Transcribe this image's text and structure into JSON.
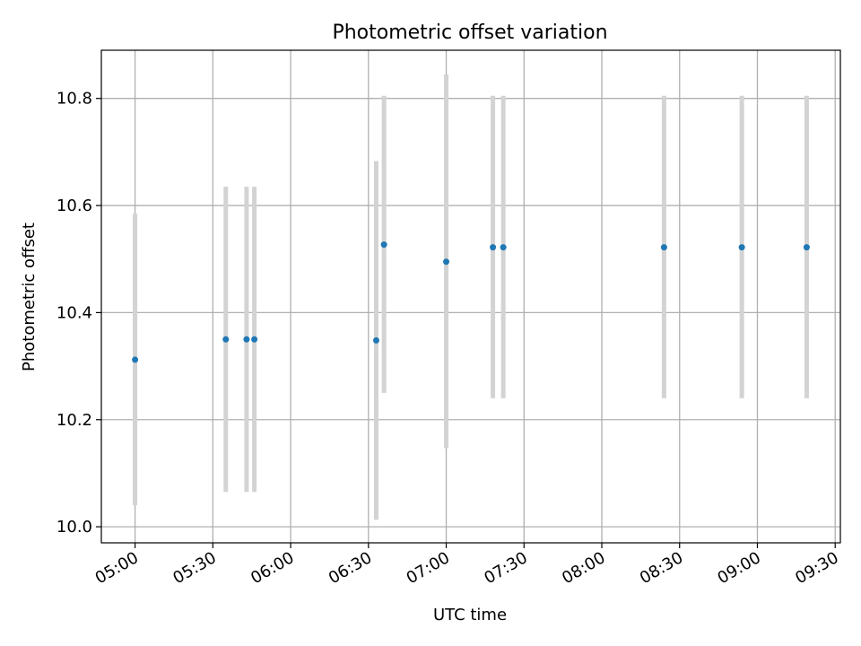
{
  "chart_data": {
    "type": "scatter",
    "title": "Photometric offset variation",
    "xlabel": "UTC time",
    "ylabel": "Photometric offset",
    "x_ticks": [
      "05:00",
      "05:30",
      "06:00",
      "06:30",
      "07:00",
      "07:30",
      "08:00",
      "08:30",
      "09:00",
      "09:30"
    ],
    "y_ticks": [
      "10.0",
      "10.2",
      "10.4",
      "10.6",
      "10.8"
    ],
    "xlim": [
      "04:47",
      "09:32"
    ],
    "ylim": [
      9.97,
      10.89
    ],
    "grid": true,
    "errorbar_color": "#d3d3d3",
    "point_color": "#1f77b4",
    "points": [
      {
        "time": "05:00",
        "y": 10.312,
        "ylo": 10.04,
        "yhi": 10.585
      },
      {
        "time": "05:35",
        "y": 10.35,
        "ylo": 10.065,
        "yhi": 10.635
      },
      {
        "time": "05:43",
        "y": 10.35,
        "ylo": 10.065,
        "yhi": 10.635
      },
      {
        "time": "05:46",
        "y": 10.35,
        "ylo": 10.065,
        "yhi": 10.635
      },
      {
        "time": "06:33",
        "y": 10.348,
        "ylo": 10.013,
        "yhi": 10.683
      },
      {
        "time": "06:36",
        "y": 10.527,
        "ylo": 10.25,
        "yhi": 10.805
      },
      {
        "time": "07:00",
        "y": 10.495,
        "ylo": 10.147,
        "yhi": 10.845
      },
      {
        "time": "07:18",
        "y": 10.522,
        "ylo": 10.24,
        "yhi": 10.805
      },
      {
        "time": "07:22",
        "y": 10.522,
        "ylo": 10.24,
        "yhi": 10.805
      },
      {
        "time": "08:24",
        "y": 10.522,
        "ylo": 10.24,
        "yhi": 10.805
      },
      {
        "time": "08:54",
        "y": 10.522,
        "ylo": 10.24,
        "yhi": 10.805
      },
      {
        "time": "09:19",
        "y": 10.522,
        "ylo": 10.24,
        "yhi": 10.805
      }
    ]
  }
}
